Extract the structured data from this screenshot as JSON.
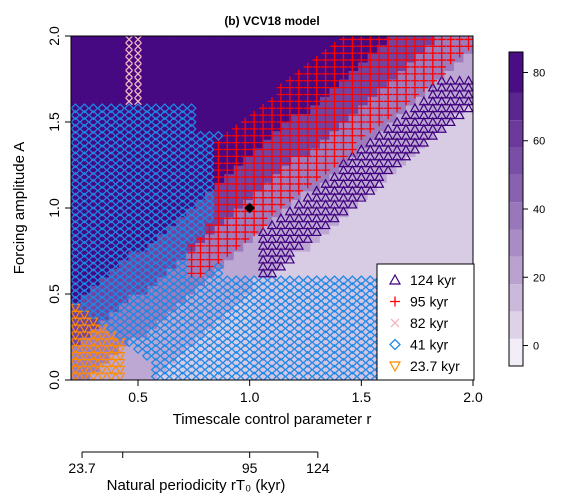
{
  "chart_data": {
    "type": "heatmap",
    "title": "(b) VCV18 model",
    "xlabel": "Timescale control parameter r",
    "ylabel": "Forcing amplitude A",
    "xlim": [
      0.2,
      2.0
    ],
    "ylim": [
      0.0,
      2.0
    ],
    "xticks": [
      0.5,
      1.0,
      1.5,
      2.0
    ],
    "xtick_labels": [
      "0.5",
      "1.0",
      "1.5",
      "2.0"
    ],
    "yticks": [
      0.0,
      0.5,
      1.0,
      1.5,
      2.0
    ],
    "ytick_labels": [
      "0.0",
      "0.5",
      "1.0",
      "1.5",
      "2.0"
    ],
    "colorbar": {
      "ticks": [
        0,
        20,
        40,
        60,
        80
      ],
      "tick_labels": [
        "0",
        "20",
        "40",
        "60",
        "80"
      ],
      "range": [
        -6,
        86
      ],
      "levels": [
        -6,
        2,
        10,
        18,
        26,
        34,
        42,
        50,
        58,
        66,
        74,
        86
      ],
      "color_low": "#ffffff",
      "color_high": "#3f007d"
    },
    "regions": [
      {
        "label": "124 kyr",
        "marker": "triangle-up",
        "color": "#3f007d",
        "x_range": [
          1.05,
          1.78
        ],
        "A_range": [
          0.5,
          1.75
        ]
      },
      {
        "label": "95 kyr",
        "marker": "plus",
        "color": "#ff0000",
        "x_range": [
          0.72,
          1.88
        ],
        "A_range": [
          0.45,
          2.0
        ]
      },
      {
        "label": "82 kyr",
        "marker": "x",
        "color": "#f4b6c2",
        "x_range": [
          0.45,
          1.1
        ],
        "A_range": [
          1.55,
          2.0
        ]
      },
      {
        "label": "41 kyr",
        "marker": "diamond",
        "color": "#1e88e5",
        "x_range": [
          0.2,
          1.65
        ],
        "A_range": [
          0.0,
          1.8
        ]
      },
      {
        "label": "23.7 kyr",
        "marker": "triangle-down",
        "color": "#ff8c00",
        "x_range": [
          0.2,
          0.45
        ],
        "A_range": [
          0.0,
          0.45
        ]
      }
    ],
    "highlight_point": {
      "x": 1.0,
      "y": 1.0,
      "marker": "filled-diamond",
      "color": "#000000"
    },
    "legend_placement": "bottom-right",
    "secondary_axis": {
      "label": "Natural periodicity rT₀ (kyr)",
      "ticks": [
        23.7,
        41,
        95,
        124
      ],
      "tick_labels": [
        "23.7",
        "",
        "95",
        "124"
      ]
    }
  },
  "legend": [
    {
      "label": "124 kyr",
      "marker": "triangle-up",
      "color": "#3f007d"
    },
    {
      "label": "95 kyr",
      "marker": "plus",
      "color": "#ff0000"
    },
    {
      "label": "82 kyr",
      "marker": "x",
      "color": "#f4b6c2"
    },
    {
      "label": "41 kyr",
      "marker": "diamond",
      "color": "#1e88e5"
    },
    {
      "label": "23.7 kyr",
      "marker": "triangle-down",
      "color": "#ff8c00"
    }
  ]
}
